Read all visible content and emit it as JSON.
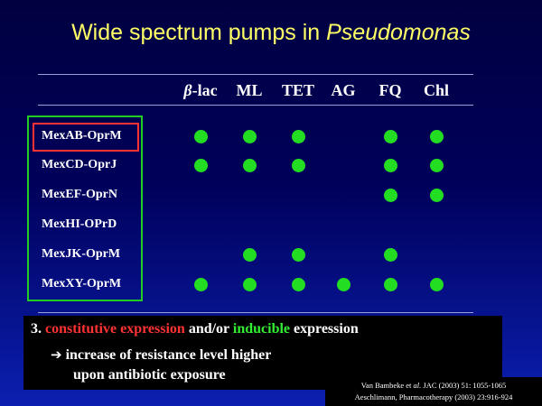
{
  "title": {
    "prefix": "Wide spectrum pumps in ",
    "italic": "Pseudomonas"
  },
  "columns": [
    {
      "greek": "β",
      "label": "-lac"
    },
    {
      "greek": "",
      "label": "ML"
    },
    {
      "greek": "",
      "label": "TET"
    },
    {
      "greek": "",
      "label": "AG"
    },
    {
      "greek": "",
      "label": "FQ"
    },
    {
      "greek": "",
      "label": "Chl"
    }
  ],
  "pumps": [
    {
      "name": "MexAB-OprM",
      "highlighted": true,
      "activity": [
        true,
        true,
        true,
        false,
        true,
        true
      ]
    },
    {
      "name": "MexCD-OprJ",
      "highlighted": false,
      "activity": [
        true,
        true,
        true,
        false,
        true,
        true
      ]
    },
    {
      "name": "MexEF-OprN",
      "highlighted": false,
      "activity": [
        false,
        false,
        false,
        false,
        true,
        true
      ]
    },
    {
      "name": "MexHI-OPrD",
      "highlighted": false,
      "activity": [
        false,
        false,
        false,
        false,
        false,
        false
      ]
    },
    {
      "name": "MexJK-OprM",
      "highlighted": false,
      "activity": [
        false,
        true,
        true,
        false,
        true,
        false
      ]
    },
    {
      "name": "MexXY-OprM",
      "highlighted": false,
      "activity": [
        true,
        true,
        true,
        true,
        true,
        true
      ]
    }
  ],
  "note": {
    "number": "3.",
    "red_text": "constitutive expression",
    "mid_text": "and/or",
    "green_text": "inducible",
    "end_text": "expression",
    "arrow_line": "increase of resistance level higher",
    "cont_line": "upon antibiotic exposure"
  },
  "refs": {
    "ref1_author": "Van Bambeke et ",
    "ref1_italic": "al.",
    "ref1_rest": " JAC (2003) 51: 1055-1065",
    "ref2": "Aeschlimann, Pharmacotherapy (2003) 23:916-924"
  },
  "colors": {
    "title": "#ffff66",
    "dot": "#22dd22",
    "box_green": "#22cc22",
    "box_red": "#ff3333"
  }
}
